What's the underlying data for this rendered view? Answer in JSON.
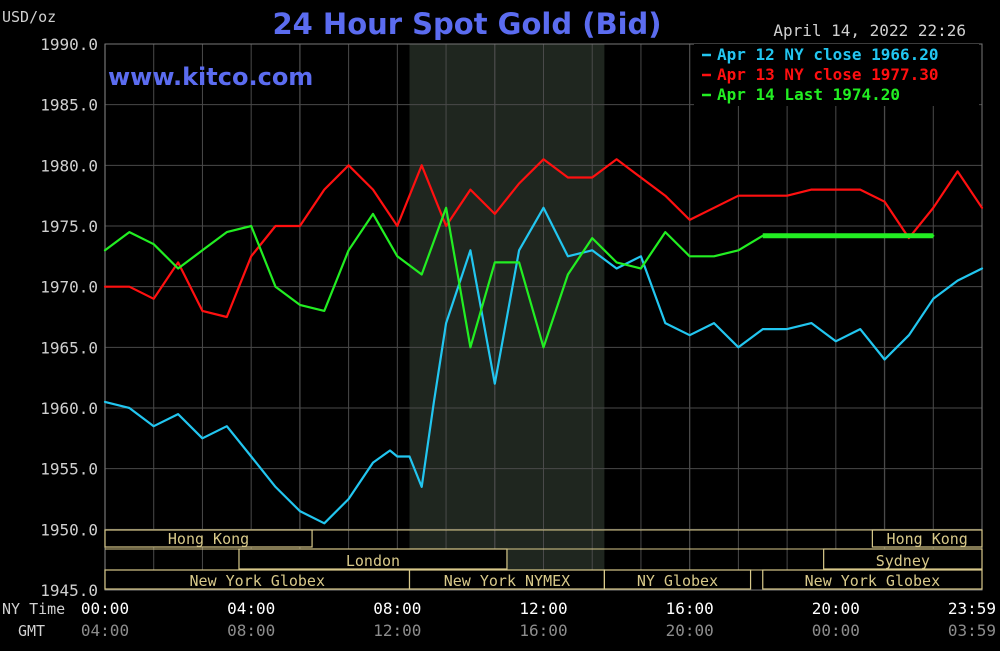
{
  "title": "24 Hour Spot Gold (Bid)",
  "unit_label": "USD/oz",
  "website": "www.kitco.com",
  "timestamp": "April 14, 2022 22:26",
  "row_labels": {
    "ny": "NY Time",
    "gmt": "GMT"
  },
  "colors": {
    "background": "#000000",
    "grid": "#4a4a4a",
    "title": "#5b6cf0",
    "apr12": "#22c6f0",
    "apr13": "#ff1010",
    "apr14": "#22ee22",
    "shade": "#1f261f",
    "session_box": "#d8c98a"
  },
  "legend": [
    {
      "label": "Apr 12 NY close 1966.20",
      "series": "apr12"
    },
    {
      "label": "Apr 13 NY close 1977.30",
      "series": "apr13"
    },
    {
      "label": "Apr 14 Last 1974.20",
      "series": "apr14"
    }
  ],
  "sessions": [
    {
      "label": "Hong Kong",
      "start": 0,
      "end": 8.5
    },
    {
      "label": "London",
      "start": 5.5,
      "end": 16.5
    },
    {
      "label": "New York Globex",
      "start": 0,
      "end": 12.5
    },
    {
      "label": "New York NYMEX",
      "start": 12.5,
      "end": 20.5
    },
    {
      "label": "NY Globex",
      "start": 20.5,
      "end": 26.5
    },
    {
      "label": "Hong Kong",
      "start": 31.5,
      "end": 36
    },
    {
      "label": "Sydney",
      "start": 29.5,
      "end": 36
    },
    {
      "label": "New York Globex",
      "start": 27,
      "end": 36
    }
  ],
  "chart_data": {
    "type": "line",
    "ylim": [
      1945,
      1990
    ],
    "yticks": [
      "1990.0",
      "1985.0",
      "1980.0",
      "1975.0",
      "1970.0",
      "1965.0",
      "1960.0",
      "1955.0",
      "1950.0",
      "1945.0"
    ],
    "xlim": [
      0,
      36
    ],
    "shaded_region": [
      12.5,
      20.5
    ],
    "x_ticks_ny": [
      "00:00",
      "04:00",
      "08:00",
      "12:00",
      "16:00",
      "20:00",
      "23:59"
    ],
    "x_ticks_gmt": [
      "04:00",
      "08:00",
      "12:00",
      "16:00",
      "20:00",
      "00:00",
      "03:59"
    ],
    "series": [
      {
        "key": "apr12",
        "name": "Apr 12",
        "x": [
          0,
          1,
          2,
          3,
          4,
          5,
          6,
          7,
          8,
          9,
          10,
          11,
          11.7,
          12,
          12.5,
          13,
          13.5,
          14,
          15,
          16,
          17,
          18,
          19,
          20,
          21,
          22,
          23,
          24,
          25,
          26,
          27,
          28,
          29,
          30,
          31,
          32,
          33,
          34,
          35,
          36
        ],
        "y": [
          1960.5,
          1960,
          1958.5,
          1959.5,
          1957.5,
          1958.5,
          1956,
          1953.5,
          1951.5,
          1950.5,
          1952.5,
          1955.5,
          1956.5,
          1956,
          1956,
          1953.5,
          1960.5,
          1967,
          1973,
          1962,
          1973,
          1976.5,
          1972.5,
          1973,
          1971.5,
          1972.5,
          1967,
          1966,
          1967,
          1965,
          1966.5,
          1966.5,
          1967,
          1965.5,
          1966.5,
          1964,
          1966,
          1969,
          1970.5,
          1971.5
        ]
      },
      {
        "key": "apr13",
        "name": "Apr 13",
        "x": [
          0,
          1,
          2,
          3,
          4,
          5,
          6,
          7,
          8,
          9,
          10,
          11,
          12,
          13,
          14,
          15,
          16,
          17,
          18,
          19,
          20,
          21,
          22,
          23,
          24,
          25,
          26,
          27,
          28,
          29,
          30,
          31,
          32,
          33,
          34,
          35,
          36
        ],
        "y": [
          1970,
          1970,
          1969,
          1972,
          1968,
          1967.5,
          1972.5,
          1975,
          1975,
          1978,
          1980,
          1978,
          1975,
          1980,
          1975,
          1978,
          1976,
          1978.5,
          1980.5,
          1979,
          1979,
          1980.5,
          1979,
          1977.5,
          1975.5,
          1976.5,
          1977.5,
          1977.5,
          1977.5,
          1978,
          1978,
          1978,
          1977,
          1974,
          1976.5,
          1979.5,
          1976.5
        ]
      },
      {
        "key": "apr14",
        "name": "Apr 14",
        "x": [
          0,
          1,
          2,
          3,
          4,
          5,
          6,
          7,
          8,
          9,
          10,
          11,
          12,
          13,
          14,
          15,
          16,
          17,
          18,
          19,
          20,
          21,
          22,
          23,
          24,
          25,
          26,
          27,
          28,
          29,
          30,
          31,
          32,
          33,
          34
        ],
        "y": [
          1973,
          1974.5,
          1973.5,
          1971.5,
          1973,
          1974.5,
          1975,
          1970,
          1968.5,
          1968,
          1973,
          1976,
          1972.5,
          1971,
          1976.5,
          1965,
          1972,
          1972,
          1965,
          1971,
          1974,
          1972,
          1971.5,
          1974.5,
          1972.5,
          1972.5,
          1973,
          1974.2,
          1974.2,
          1974.2,
          1974.2,
          1974.2,
          1974.2,
          1974.2,
          1974.2
        ]
      }
    ]
  }
}
